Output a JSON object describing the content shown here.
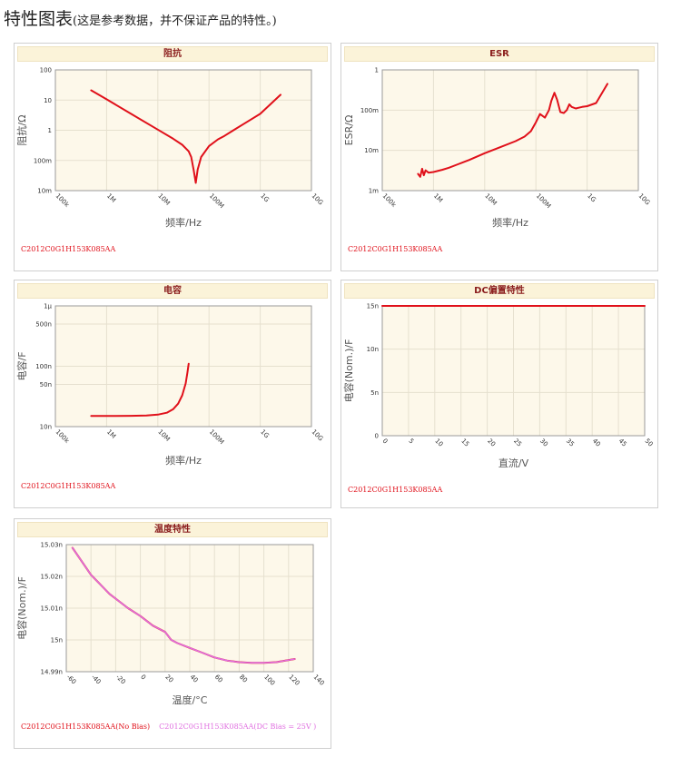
{
  "page": {
    "title": "特性图表",
    "subtitle": "(这是参考数据，并不保证产品的特性。)"
  },
  "colors": {
    "primary": "#e0101a",
    "secondary": "#e070e0",
    "plot_bg": "#fdf8ea",
    "header_bg": "#fbf3d9",
    "header_text": "#8a1c1c"
  },
  "panels": [
    {
      "id": "impedance",
      "title": "阻抗",
      "legend": [
        "C2012C0G1H153K085AA"
      ]
    },
    {
      "id": "esr",
      "title": "ESR",
      "legend": [
        "C2012C0G1H153K085AA"
      ]
    },
    {
      "id": "capacitance",
      "title": "电容",
      "legend": [
        "C2012C0G1H153K085AA"
      ]
    },
    {
      "id": "dcbias",
      "title": "DC偏置特性",
      "legend": [
        "C2012C0G1H153K085AA"
      ]
    },
    {
      "id": "temperature",
      "title": "温度特性",
      "legend": [
        "C2012C0G1H153K085AA(No Bias)",
        "C2012C0G1H153K085AA(DC Bias = 25V )"
      ]
    }
  ],
  "chart_data": [
    {
      "id": "impedance",
      "type": "line",
      "title": "阻抗",
      "xlabel": "频率/Hz",
      "ylabel": "阻抗/Ω",
      "xscale": "log",
      "yscale": "log",
      "xlim": [
        100000,
        10000000000
      ],
      "ylim": [
        0.01,
        100
      ],
      "xticks": [
        100000,
        1000000,
        10000000,
        100000000,
        1000000000,
        10000000000
      ],
      "xtick_labels": [
        "100k",
        "1M",
        "10M",
        "100M",
        "1G",
        "10G"
      ],
      "yticks": [
        0.01,
        0.1,
        1,
        10,
        100
      ],
      "ytick_labels": [
        "10m",
        "100m",
        "1",
        "10",
        "100"
      ],
      "grid": true,
      "series": [
        {
          "name": "C2012C0G1H153K085AA",
          "color": "#e0101a",
          "x": [
            500000,
            1000000,
            3000000,
            10000000,
            20000000,
            30000000,
            40000000,
            45000000,
            50000000,
            55000000,
            60000000,
            70000000,
            100000000,
            150000000,
            200000000,
            300000000,
            500000000,
            1000000000,
            2500000000
          ],
          "y": [
            21,
            10.6,
            3.5,
            1.05,
            0.52,
            0.33,
            0.2,
            0.13,
            0.05,
            0.018,
            0.05,
            0.13,
            0.3,
            0.5,
            0.65,
            1.0,
            1.7,
            3.5,
            15
          ]
        }
      ]
    },
    {
      "id": "esr",
      "type": "line",
      "title": "ESR",
      "xlabel": "频率/Hz",
      "ylabel": "ESR/Ω",
      "xscale": "log",
      "yscale": "log",
      "xlim": [
        100000,
        10000000000
      ],
      "ylim": [
        0.001,
        1
      ],
      "xticks": [
        100000,
        1000000,
        10000000,
        100000000,
        1000000000,
        10000000000
      ],
      "xtick_labels": [
        "100k",
        "1M",
        "10M",
        "100M",
        "1G",
        "10G"
      ],
      "yticks": [
        0.001,
        0.01,
        0.1,
        1
      ],
      "ytick_labels": [
        "1m",
        "10m",
        "100m",
        "1"
      ],
      "grid": true,
      "series": [
        {
          "name": "C2012C0G1H153K085AA",
          "color": "#e0101a",
          "x": [
            500000,
            550000,
            600000,
            650000,
            700000,
            800000,
            1000000,
            1500000,
            2000000,
            3000000,
            5000000,
            10000000,
            20000000,
            40000000,
            60000000,
            80000000,
            100000000,
            120000000,
            150000000,
            180000000,
            200000000,
            230000000,
            260000000,
            300000000,
            350000000,
            400000000,
            450000000,
            500000000,
            600000000,
            800000000,
            1000000000,
            1500000000,
            2000000000,
            2500000000
          ],
          "y": [
            0.0026,
            0.0022,
            0.0035,
            0.0024,
            0.0032,
            0.0028,
            0.0029,
            0.0033,
            0.0037,
            0.0045,
            0.0058,
            0.0085,
            0.012,
            0.017,
            0.022,
            0.03,
            0.05,
            0.08,
            0.065,
            0.1,
            0.17,
            0.27,
            0.18,
            0.09,
            0.085,
            0.1,
            0.14,
            0.12,
            0.11,
            0.12,
            0.125,
            0.15,
            0.28,
            0.45
          ]
        }
      ]
    },
    {
      "id": "capacitance",
      "type": "line",
      "title": "电容",
      "xlabel": "频率/Hz",
      "ylabel": "电容/F",
      "xscale": "log",
      "yscale": "log",
      "xlim": [
        100000,
        10000000000
      ],
      "ylim": [
        1e-08,
        1e-06
      ],
      "xticks": [
        100000,
        1000000,
        10000000,
        100000000,
        1000000000,
        10000000000
      ],
      "xtick_labels": [
        "100k",
        "1M",
        "10M",
        "100M",
        "1G",
        "10G"
      ],
      "yticks": [
        1e-08,
        5e-08,
        1e-07,
        5e-07,
        1e-06
      ],
      "ytick_labels": [
        "10n",
        "50n",
        "100n",
        "500n",
        "1μ"
      ],
      "grid": true,
      "series": [
        {
          "name": "C2012C0G1H153K085AA",
          "color": "#e0101a",
          "x": [
            500000,
            1000000,
            3000000,
            6000000,
            10000000,
            15000000,
            20000000,
            25000000,
            30000000,
            35000000,
            38000000,
            40000000
          ],
          "y": [
            1.5e-08,
            1.5e-08,
            1.51e-08,
            1.53e-08,
            1.58e-08,
            1.7e-08,
            1.95e-08,
            2.4e-08,
            3.3e-08,
            5.2e-08,
            8e-08,
            1.1e-07
          ]
        }
      ]
    },
    {
      "id": "dcbias",
      "type": "line",
      "title": "DC偏置特性",
      "xlabel": "直流/V",
      "ylabel": "电容(Nom.)/F",
      "xlim": [
        0,
        50
      ],
      "ylim": [
        0,
        1.5e-08
      ],
      "xticks": [
        0,
        5,
        10,
        15,
        20,
        25,
        30,
        35,
        40,
        45,
        50
      ],
      "xtick_labels": [
        "0",
        "5",
        "10",
        "15",
        "20",
        "25",
        "30",
        "35",
        "40",
        "45",
        "50"
      ],
      "yticks": [
        0,
        5e-09,
        1e-08,
        1.5e-08
      ],
      "ytick_labels": [
        "0",
        "5n",
        "10n",
        "15n"
      ],
      "grid": true,
      "series": [
        {
          "name": "C2012C0G1H153K085AA",
          "color": "#e0101a",
          "x": [
            0,
            50
          ],
          "y": [
            1.5e-08,
            1.5e-08
          ]
        }
      ]
    },
    {
      "id": "temperature",
      "type": "line",
      "title": "温度特性",
      "xlabel": "温度/°C",
      "ylabel": "电容(Nom.)/F",
      "xlim": [
        -60,
        140
      ],
      "ylim": [
        1.499e-08,
        1.503e-08
      ],
      "xticks": [
        -60,
        -40,
        -20,
        0,
        20,
        40,
        60,
        80,
        100,
        120,
        140
      ],
      "xtick_labels": [
        "-60",
        "-40",
        "-20",
        "0",
        "20",
        "40",
        "60",
        "80",
        "100",
        "120",
        "140"
      ],
      "yticks": [
        1.499e-08,
        1.5e-08,
        1.501e-08,
        1.502e-08,
        1.503e-08
      ],
      "ytick_labels": [
        "14.99n",
        "15n",
        "15.01n",
        "15.02n",
        "15.03n"
      ],
      "grid": true,
      "series": [
        {
          "name": "C2012C0G1H153K085AA(No Bias)",
          "color": "#e0101a",
          "x": [
            -55,
            -40,
            -25,
            -10,
            0,
            10,
            20,
            25,
            30,
            40,
            50,
            60,
            70,
            80,
            90,
            100,
            110,
            125
          ],
          "y": [
            1.5029e-08,
            1.50205e-08,
            1.50145e-08,
            1.501e-08,
            1.50075e-08,
            1.50045e-08,
            1.50025e-08,
            1.5e-08,
            1.4999e-08,
            1.49975e-08,
            1.4996e-08,
            1.49945e-08,
            1.49935e-08,
            1.4993e-08,
            1.49928e-08,
            1.49928e-08,
            1.4993e-08,
            1.4994e-08
          ]
        },
        {
          "name": "C2012C0G1H153K085AA(DC Bias = 25V )",
          "color": "#e070e0",
          "x": [
            -55,
            -40,
            -25,
            -10,
            0,
            10,
            20,
            25,
            30,
            40,
            50,
            60,
            70,
            80,
            90,
            100,
            110,
            125
          ],
          "y": [
            1.5029e-08,
            1.50205e-08,
            1.50145e-08,
            1.501e-08,
            1.50075e-08,
            1.50045e-08,
            1.50025e-08,
            1.5e-08,
            1.4999e-08,
            1.49975e-08,
            1.4996e-08,
            1.49945e-08,
            1.49935e-08,
            1.4993e-08,
            1.49928e-08,
            1.49928e-08,
            1.4993e-08,
            1.4994e-08
          ]
        }
      ]
    }
  ]
}
